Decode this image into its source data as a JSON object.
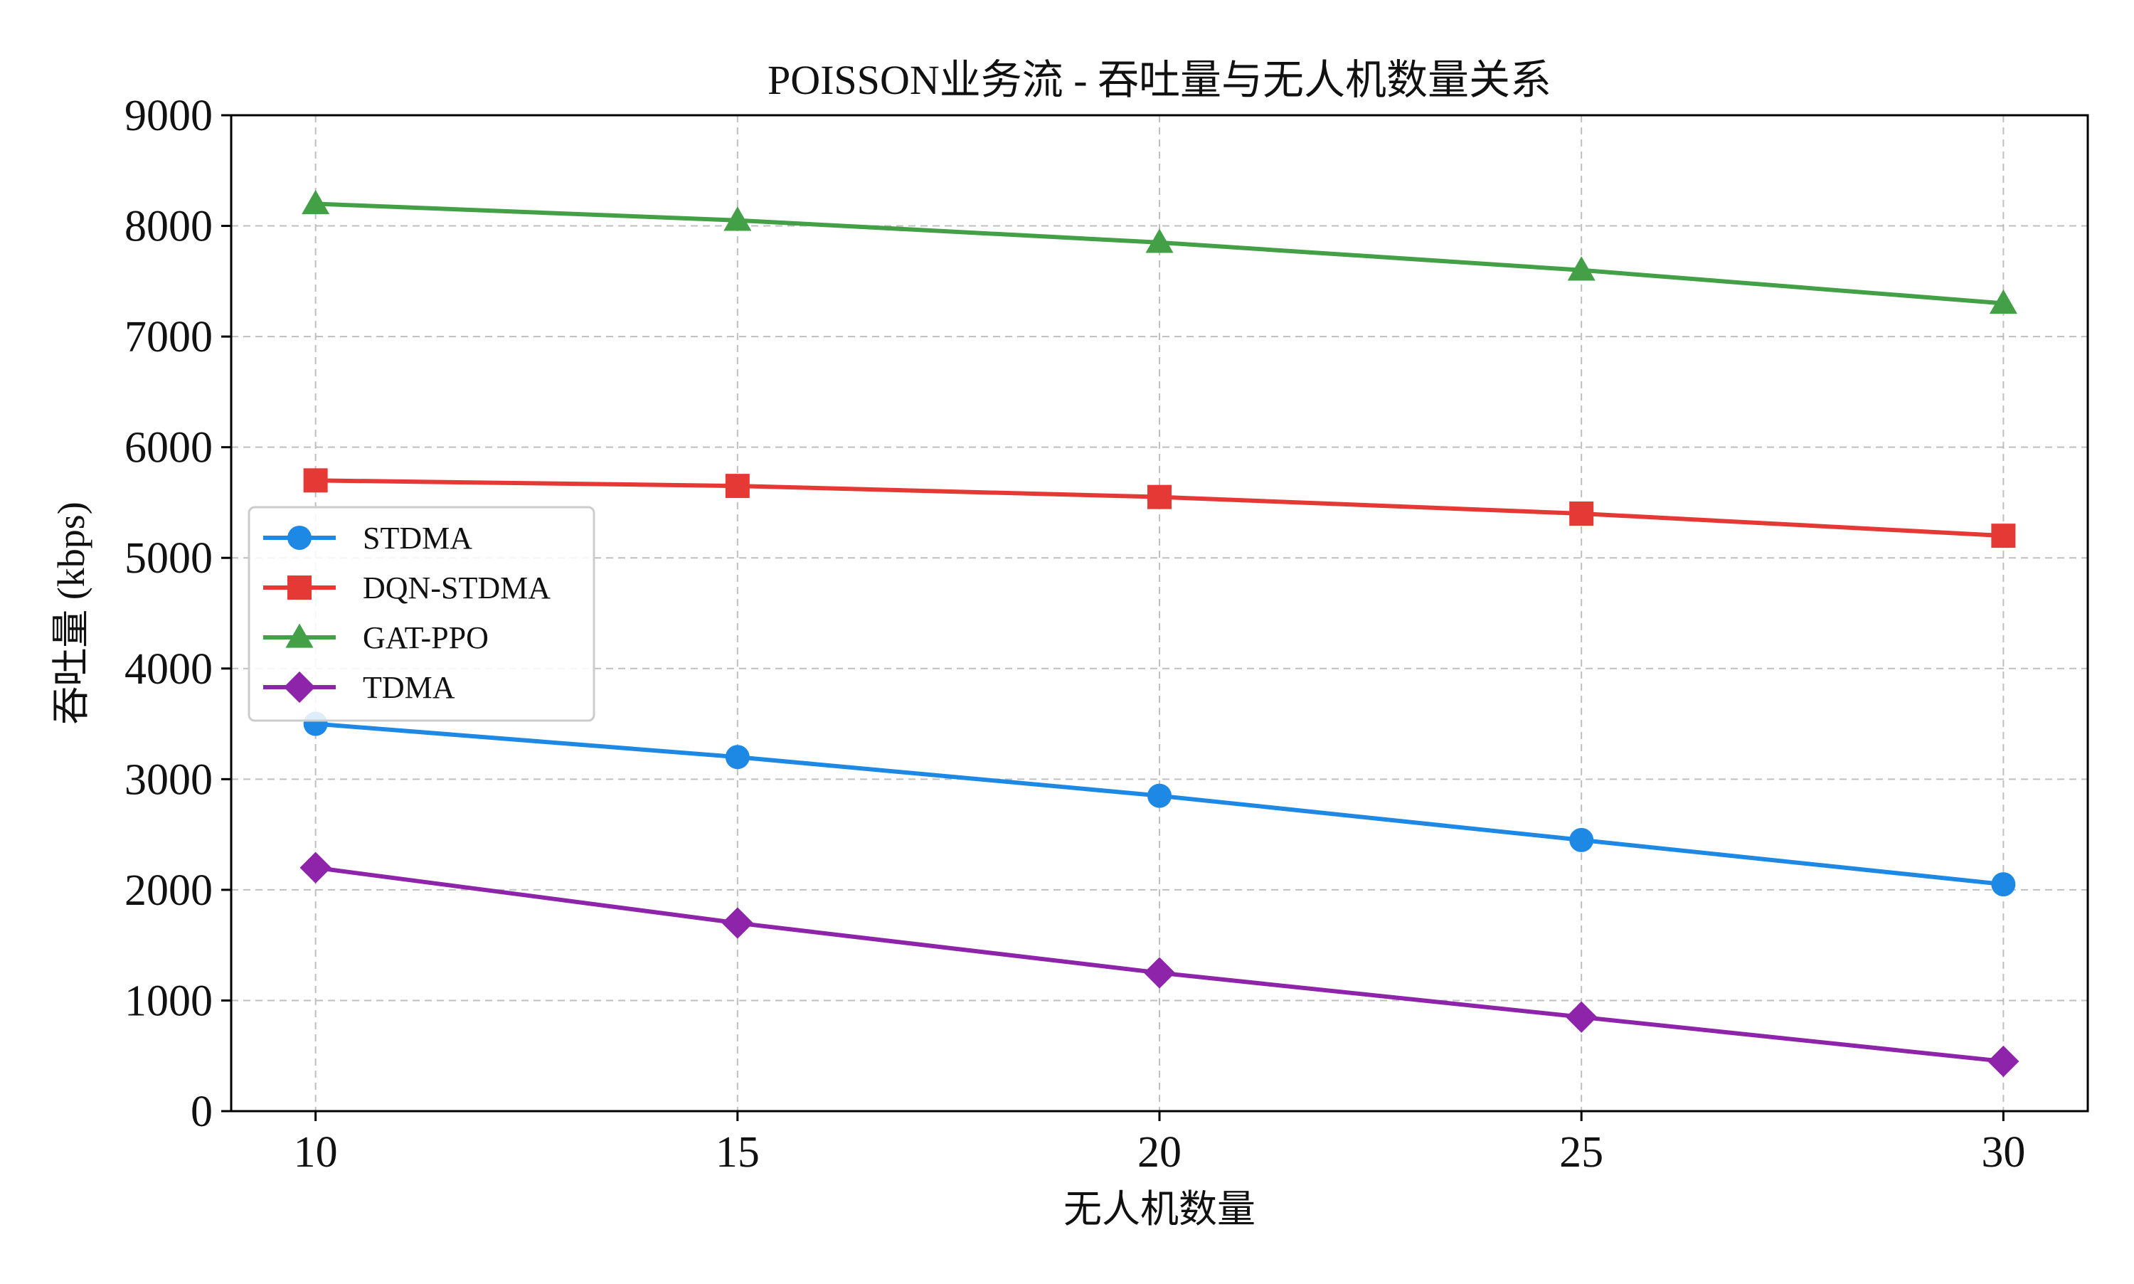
{
  "chart_data": {
    "type": "line",
    "title": "POISSON业务流 - 吞吐量与无人机数量关系",
    "xlabel": "无人机数量",
    "ylabel": "吞吐量 (kbps)",
    "x": [
      10,
      15,
      20,
      25,
      30
    ],
    "xticks": [
      10,
      15,
      20,
      25,
      30
    ],
    "yticks": [
      0,
      1000,
      2000,
      3000,
      4000,
      5000,
      6000,
      7000,
      8000,
      9000
    ],
    "xlim": [
      9,
      31
    ],
    "ylim": [
      0,
      9000
    ],
    "grid": true,
    "legend_position": "center-left",
    "series": [
      {
        "name": "STDMA",
        "values": [
          3500,
          3200,
          2850,
          2450,
          2050
        ],
        "color": "#1e88e5",
        "marker": "circle"
      },
      {
        "name": "DQN-STDMA",
        "values": [
          5700,
          5650,
          5550,
          5400,
          5200
        ],
        "color": "#e53935",
        "marker": "square"
      },
      {
        "name": "GAT-PPO",
        "values": [
          8200,
          8050,
          7850,
          7600,
          7300
        ],
        "color": "#43a047",
        "marker": "triangle"
      },
      {
        "name": "TDMA",
        "values": [
          2200,
          1700,
          1250,
          850,
          450
        ],
        "color": "#8e24aa",
        "marker": "diamond"
      }
    ]
  }
}
